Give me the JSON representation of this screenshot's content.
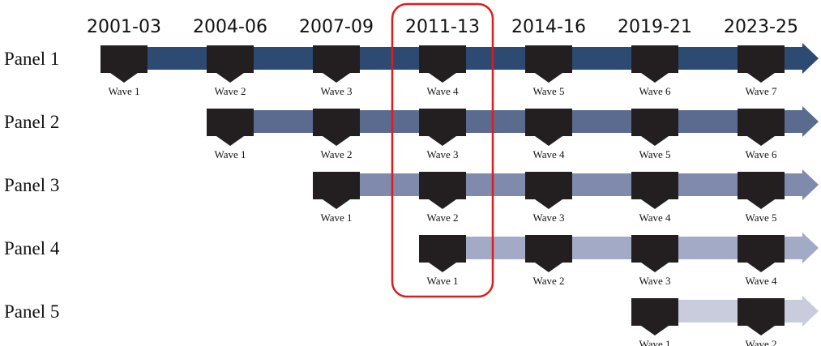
{
  "columns": [
    "2001-03",
    "2004-06",
    "2007-09",
    "2011-13",
    "2014-16",
    "2019-21",
    "2023-25"
  ],
  "panels": [
    {
      "label": "Panel 1",
      "waves": [
        "Wave 1",
        "Wave 2",
        "Wave 3",
        "Wave 4",
        "Wave 5",
        "Wave 6",
        "Wave 7"
      ]
    },
    {
      "label": "Panel 2",
      "waves": [
        "Wave 1",
        "Wave 2",
        "Wave 3",
        "Wave 4",
        "Wave 5",
        "Wave 6"
      ]
    },
    {
      "label": "Panel 3",
      "waves": [
        "Wave 1",
        "Wave 2",
        "Wave 3",
        "Wave 4",
        "Wave 5"
      ]
    },
    {
      "label": "Panel 4",
      "waves": [
        "Wave 1",
        "Wave 2",
        "Wave 3",
        "Wave 4"
      ]
    },
    {
      "label": "Panel 5",
      "waves": [
        "Wave 1",
        "Wave 2"
      ]
    }
  ]
}
